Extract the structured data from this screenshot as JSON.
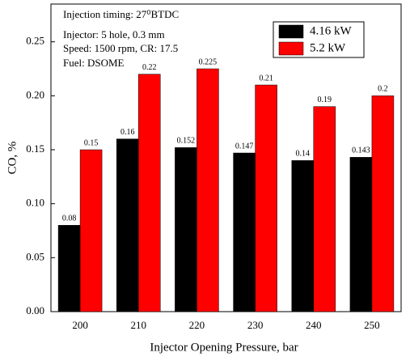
{
  "chart_data": {
    "type": "bar",
    "annotations": [
      "Injection timing: 27⁰BTDC",
      "Injector: 5 hole, 0.3 mm",
      "Speed: 1500 rpm, CR: 17.5",
      "Fuel: DSOME"
    ],
    "x_label": "Injector Opening Pressure, bar",
    "y_label": "CO, %",
    "categories": [
      "200",
      "210",
      "220",
      "230",
      "240",
      "250"
    ],
    "series": [
      {
        "name": "4.16 kW",
        "color": "#000000",
        "values": [
          0.08,
          0.16,
          0.152,
          0.147,
          0.14,
          0.143
        ]
      },
      {
        "name": "5.2 kW",
        "color": "#ff0000",
        "values": [
          0.15,
          0.22,
          0.225,
          0.21,
          0.19,
          0.2
        ]
      }
    ],
    "ylim": [
      0,
      0.285
    ],
    "yticks": [
      {
        "value": 0,
        "label": "0.00"
      },
      {
        "value": 0.05,
        "label": "0.05"
      },
      {
        "value": 0.1,
        "label": "0.10"
      },
      {
        "value": 0.15,
        "label": "0.15"
      },
      {
        "value": 0.2,
        "label": "0.20"
      },
      {
        "value": 0.25,
        "label": "0.25"
      }
    ],
    "legend": "top-right"
  }
}
